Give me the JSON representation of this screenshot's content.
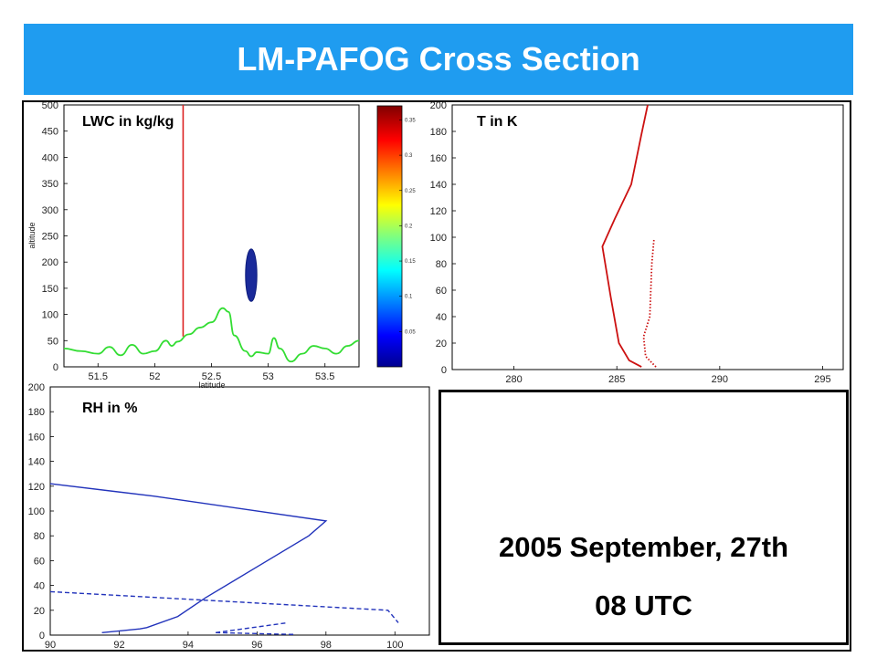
{
  "header": {
    "title": "LM-PAFOG Cross Section"
  },
  "date_box": {
    "line1": "2005 September, 27th",
    "line2": "08 UTC"
  },
  "chart_data": [
    {
      "type": "line",
      "title": "LWC in kg/kg",
      "xlabel": "latitude",
      "ylabel": "altitude",
      "xlim": [
        51.2,
        53.8
      ],
      "ylim": [
        0,
        500
      ],
      "xticks": [
        51.5,
        52,
        52.5,
        53,
        53.5
      ],
      "yticks": [
        0,
        50,
        100,
        150,
        200,
        250,
        300,
        350,
        400,
        450,
        500
      ],
      "vertical_line_x": 52.25,
      "terrain": {
        "x": [
          51.2,
          51.35,
          51.5,
          51.6,
          51.7,
          51.8,
          51.9,
          52.0,
          52.1,
          52.15,
          52.2,
          52.3,
          52.4,
          52.5,
          52.6,
          52.65,
          52.7,
          52.8,
          52.85,
          52.9,
          53.0,
          53.05,
          53.1,
          53.2,
          53.3,
          53.4,
          53.5,
          53.6,
          53.7,
          53.8
        ],
        "y": [
          35,
          30,
          25,
          38,
          22,
          42,
          25,
          30,
          50,
          40,
          48,
          62,
          75,
          85,
          112,
          105,
          60,
          30,
          20,
          28,
          25,
          55,
          35,
          10,
          25,
          40,
          35,
          25,
          40,
          50
        ]
      },
      "fog_patch": {
        "x_center": 52.85,
        "y_range": [
          125,
          225
        ],
        "half_width": 0.05
      },
      "colorbar": {
        "ticks": [
          0.05,
          0.1,
          0.15,
          0.2,
          0.25,
          0.3,
          0.35
        ],
        "range": [
          0.0,
          0.37
        ]
      },
      "colors": {
        "terrain": "#33dd33",
        "line": "#dd2222",
        "fog": "#1a2a9a"
      }
    },
    {
      "type": "line",
      "title": "T in K",
      "xlim": [
        277,
        296
      ],
      "ylim": [
        0,
        200
      ],
      "xticks": [
        280,
        285,
        290,
        295
      ],
      "yticks": [
        0,
        20,
        40,
        60,
        80,
        100,
        120,
        140,
        160,
        180,
        200
      ],
      "series": [
        {
          "style": "solid",
          "x": [
            286.2,
            285.6,
            285.1,
            284.7,
            284.3,
            284.9,
            285.7,
            286.2,
            286.5
          ],
          "y": [
            2,
            7,
            20,
            55,
            93,
            114,
            140,
            178,
            200
          ]
        },
        {
          "style": "dotted",
          "x": [
            286.9,
            286.4,
            286.3,
            286.6,
            286.7,
            286.8
          ],
          "y": [
            2,
            10,
            25,
            40,
            80,
            98
          ]
        }
      ],
      "colors": {
        "line": "#cc1111"
      }
    },
    {
      "type": "line",
      "title": "RH in %",
      "xlim": [
        90,
        101
      ],
      "ylim": [
        0,
        200
      ],
      "xticks": [
        90,
        92,
        94,
        96,
        98,
        100
      ],
      "yticks": [
        0,
        20,
        40,
        60,
        80,
        100,
        120,
        140,
        160,
        180,
        200
      ],
      "series": [
        {
          "style": "solid",
          "x": [
            90,
            93,
            98,
            97.5,
            96,
            94.5,
            93.7,
            92.8,
            92.6,
            91.5
          ],
          "y": [
            122,
            112,
            92,
            80,
            55,
            30,
            15,
            6,
            5,
            2
          ]
        },
        {
          "style": "dashed",
          "x": [
            90,
            99.8,
            100.1
          ],
          "y": [
            35,
            20,
            10
          ]
        },
        {
          "style": "dashed",
          "x": [
            94.8,
            96.9
          ],
          "y": [
            2,
            10
          ]
        },
        {
          "style": "dashed",
          "x": [
            94.8,
            97.1
          ],
          "y": [
            2,
            0.5
          ]
        }
      ],
      "colors": {
        "line": "#2233bb"
      }
    }
  ]
}
